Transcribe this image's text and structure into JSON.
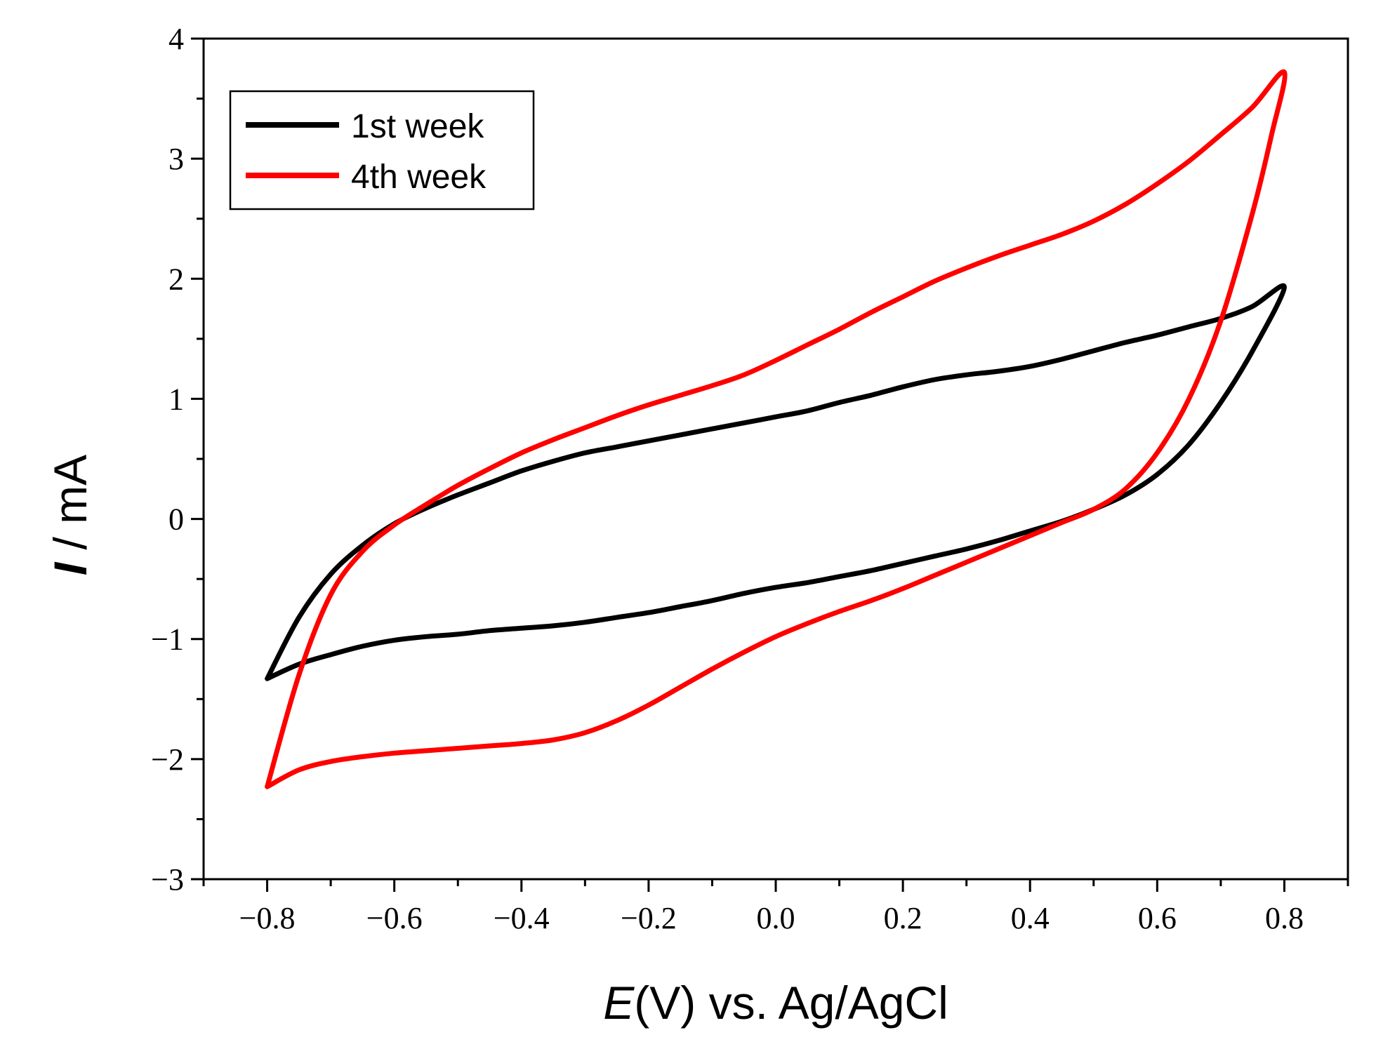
{
  "chart_data": {
    "type": "line",
    "title": "",
    "xlabel": {
      "italic": "E",
      "rest": "(V) vs. Ag/AgCl"
    },
    "ylabel": {
      "italic": "I",
      "rest": " / mA"
    },
    "xlim": [
      -0.9,
      0.9
    ],
    "ylim": [
      -3,
      4
    ],
    "xticks": [
      -0.8,
      -0.6,
      -0.4,
      -0.2,
      0.0,
      0.2,
      0.4,
      0.6,
      0.8
    ],
    "xtick_labels": [
      "−0.8",
      "−0.6",
      "−0.4",
      "−0.2",
      "0.0",
      "0.2",
      "0.4",
      "0.6",
      "0.8"
    ],
    "yticks": [
      -3,
      -2,
      -1,
      0,
      1,
      2,
      3,
      4
    ],
    "ytick_labels": [
      "−3",
      "−2",
      "−1",
      "0",
      "1",
      "2",
      "3",
      "4"
    ],
    "grid": false,
    "legend_position": "top-left",
    "series": [
      {
        "name": "1st week",
        "color": "#000000",
        "x": [
          -0.8,
          -0.75,
          -0.7,
          -0.65,
          -0.6,
          -0.55,
          -0.5,
          -0.45,
          -0.4,
          -0.35,
          -0.3,
          -0.25,
          -0.2,
          -0.15,
          -0.1,
          -0.05,
          0.0,
          0.05,
          0.1,
          0.15,
          0.2,
          0.25,
          0.3,
          0.35,
          0.4,
          0.45,
          0.5,
          0.55,
          0.6,
          0.65,
          0.7,
          0.75,
          0.8,
          0.75,
          0.7,
          0.65,
          0.6,
          0.55,
          0.5,
          0.45,
          0.4,
          0.35,
          0.3,
          0.25,
          0.2,
          0.15,
          0.1,
          0.05,
          0.0,
          -0.05,
          -0.1,
          -0.15,
          -0.2,
          -0.25,
          -0.3,
          -0.35,
          -0.4,
          -0.45,
          -0.5,
          -0.55,
          -0.6,
          -0.65,
          -0.7,
          -0.75,
          -0.8
        ],
        "y": [
          -1.33,
          -0.82,
          -0.46,
          -0.22,
          -0.04,
          0.09,
          0.2,
          0.3,
          0.4,
          0.48,
          0.55,
          0.6,
          0.65,
          0.7,
          0.75,
          0.8,
          0.85,
          0.9,
          0.97,
          1.03,
          1.1,
          1.16,
          1.2,
          1.23,
          1.27,
          1.33,
          1.4,
          1.47,
          1.53,
          1.6,
          1.67,
          1.77,
          1.93,
          1.4,
          0.97,
          0.62,
          0.37,
          0.2,
          0.08,
          -0.02,
          -0.1,
          -0.18,
          -0.25,
          -0.31,
          -0.37,
          -0.43,
          -0.48,
          -0.53,
          -0.57,
          -0.62,
          -0.68,
          -0.73,
          -0.78,
          -0.82,
          -0.86,
          -0.89,
          -0.91,
          -0.93,
          -0.96,
          -0.98,
          -1.01,
          -1.06,
          -1.13,
          -1.21,
          -1.33
        ]
      },
      {
        "name": "4th week",
        "color": "#ff0000",
        "x": [
          -0.8,
          -0.75,
          -0.7,
          -0.65,
          -0.6,
          -0.55,
          -0.5,
          -0.45,
          -0.4,
          -0.35,
          -0.3,
          -0.25,
          -0.2,
          -0.15,
          -0.1,
          -0.05,
          0.0,
          0.05,
          0.1,
          0.15,
          0.2,
          0.25,
          0.3,
          0.35,
          0.4,
          0.45,
          0.5,
          0.55,
          0.6,
          0.65,
          0.7,
          0.75,
          0.8,
          0.78,
          0.75,
          0.7,
          0.65,
          0.6,
          0.55,
          0.5,
          0.45,
          0.4,
          0.35,
          0.3,
          0.25,
          0.2,
          0.15,
          0.1,
          0.05,
          0.0,
          -0.05,
          -0.1,
          -0.15,
          -0.2,
          -0.25,
          -0.3,
          -0.35,
          -0.4,
          -0.45,
          -0.5,
          -0.55,
          -0.6,
          -0.65,
          -0.7,
          -0.75,
          -0.8
        ],
        "y": [
          -2.23,
          -1.3,
          -0.63,
          -0.27,
          -0.05,
          0.12,
          0.28,
          0.42,
          0.55,
          0.66,
          0.76,
          0.86,
          0.95,
          1.03,
          1.11,
          1.2,
          1.32,
          1.45,
          1.58,
          1.72,
          1.85,
          1.98,
          2.09,
          2.19,
          2.28,
          2.37,
          2.48,
          2.62,
          2.79,
          2.98,
          3.2,
          3.43,
          3.72,
          3.2,
          2.55,
          1.65,
          1.0,
          0.55,
          0.25,
          0.08,
          -0.03,
          -0.14,
          -0.25,
          -0.36,
          -0.47,
          -0.58,
          -0.68,
          -0.77,
          -0.87,
          -0.98,
          -1.11,
          -1.25,
          -1.4,
          -1.55,
          -1.68,
          -1.78,
          -1.84,
          -1.87,
          -1.89,
          -1.91,
          -1.93,
          -1.95,
          -1.98,
          -2.02,
          -2.09,
          -2.23
        ]
      }
    ]
  }
}
